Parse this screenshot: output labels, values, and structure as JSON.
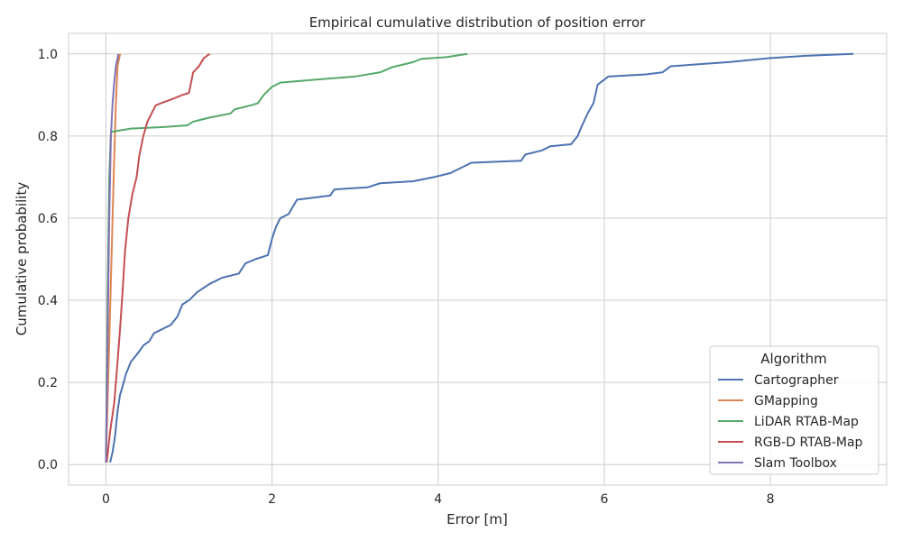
{
  "chart_data": {
    "type": "line",
    "title": "Empirical cumulative distribution of position error",
    "xlabel": "Error [m]",
    "ylabel": "Cumulative probability",
    "xlim": [
      -0.45,
      9.4
    ],
    "ylim": [
      -0.05,
      1.05
    ],
    "xticks": [
      0,
      2,
      4,
      6,
      8
    ],
    "yticks": [
      0.0,
      0.2,
      0.4,
      0.6,
      0.8,
      1.0
    ],
    "xtick_labels": [
      "0",
      "2",
      "4",
      "6",
      "8"
    ],
    "ytick_labels": [
      "0.0",
      "0.2",
      "0.4",
      "0.6",
      "0.8",
      "1.0"
    ],
    "grid": true,
    "legend": {
      "title": "Algorithm",
      "placement": "lower-right"
    },
    "series": [
      {
        "name": "Cartographer",
        "color": "#4c72b0",
        "points": [
          [
            0.05,
            0.005
          ],
          [
            0.08,
            0.03
          ],
          [
            0.11,
            0.07
          ],
          [
            0.14,
            0.13
          ],
          [
            0.17,
            0.17
          ],
          [
            0.2,
            0.19
          ],
          [
            0.24,
            0.22
          ],
          [
            0.3,
            0.25
          ],
          [
            0.38,
            0.27
          ],
          [
            0.45,
            0.29
          ],
          [
            0.52,
            0.3
          ],
          [
            0.58,
            0.32
          ],
          [
            0.68,
            0.33
          ],
          [
            0.78,
            0.34
          ],
          [
            0.86,
            0.36
          ],
          [
            0.92,
            0.39
          ],
          [
            1.0,
            0.4
          ],
          [
            1.1,
            0.42
          ],
          [
            1.25,
            0.44
          ],
          [
            1.4,
            0.455
          ],
          [
            1.6,
            0.465
          ],
          [
            1.68,
            0.49
          ],
          [
            1.8,
            0.5
          ],
          [
            1.95,
            0.51
          ],
          [
            2.0,
            0.55
          ],
          [
            2.05,
            0.58
          ],
          [
            2.1,
            0.6
          ],
          [
            2.2,
            0.61
          ],
          [
            2.3,
            0.645
          ],
          [
            2.7,
            0.655
          ],
          [
            2.75,
            0.67
          ],
          [
            3.15,
            0.675
          ],
          [
            3.3,
            0.685
          ],
          [
            3.7,
            0.69
          ],
          [
            3.95,
            0.7
          ],
          [
            4.15,
            0.71
          ],
          [
            4.4,
            0.735
          ],
          [
            5.0,
            0.74
          ],
          [
            5.05,
            0.755
          ],
          [
            5.25,
            0.765
          ],
          [
            5.35,
            0.775
          ],
          [
            5.6,
            0.78
          ],
          [
            5.68,
            0.8
          ],
          [
            5.72,
            0.82
          ],
          [
            5.8,
            0.855
          ],
          [
            5.87,
            0.88
          ],
          [
            5.92,
            0.925
          ],
          [
            6.05,
            0.945
          ],
          [
            6.5,
            0.95
          ],
          [
            6.7,
            0.955
          ],
          [
            6.8,
            0.97
          ],
          [
            7.5,
            0.98
          ],
          [
            8.0,
            0.99
          ],
          [
            8.4,
            0.995
          ],
          [
            9.0,
            1.0
          ]
        ]
      },
      {
        "name": "GMapping",
        "color": "#dd8452",
        "points": [
          [
            0.0,
            0.005
          ],
          [
            0.02,
            0.15
          ],
          [
            0.04,
            0.3
          ],
          [
            0.06,
            0.45
          ],
          [
            0.08,
            0.6
          ],
          [
            0.1,
            0.75
          ],
          [
            0.12,
            0.88
          ],
          [
            0.14,
            0.97
          ],
          [
            0.17,
            1.0
          ]
        ]
      },
      {
        "name": "LiDAR RTAB-Map",
        "color": "#55a868",
        "points": [
          [
            0.0,
            0.005
          ],
          [
            0.02,
            0.4
          ],
          [
            0.04,
            0.7
          ],
          [
            0.06,
            0.81
          ],
          [
            0.3,
            0.818
          ],
          [
            0.7,
            0.822
          ],
          [
            0.98,
            0.826
          ],
          [
            1.05,
            0.835
          ],
          [
            1.15,
            0.84
          ],
          [
            1.25,
            0.845
          ],
          [
            1.5,
            0.855
          ],
          [
            1.55,
            0.865
          ],
          [
            1.75,
            0.875
          ],
          [
            1.83,
            0.88
          ],
          [
            1.9,
            0.9
          ],
          [
            2.0,
            0.92
          ],
          [
            2.1,
            0.93
          ],
          [
            2.5,
            0.937
          ],
          [
            3.0,
            0.945
          ],
          [
            3.3,
            0.955
          ],
          [
            3.45,
            0.968
          ],
          [
            3.6,
            0.975
          ],
          [
            3.7,
            0.98
          ],
          [
            3.8,
            0.988
          ],
          [
            4.1,
            0.992
          ],
          [
            4.35,
            1.0
          ]
        ]
      },
      {
        "name": "RGB-D RTAB-Map",
        "color": "#c44e52",
        "points": [
          [
            0.01,
            0.005
          ],
          [
            0.05,
            0.08
          ],
          [
            0.1,
            0.15
          ],
          [
            0.14,
            0.25
          ],
          [
            0.17,
            0.33
          ],
          [
            0.2,
            0.42
          ],
          [
            0.23,
            0.52
          ],
          [
            0.27,
            0.6
          ],
          [
            0.32,
            0.66
          ],
          [
            0.37,
            0.7
          ],
          [
            0.4,
            0.75
          ],
          [
            0.45,
            0.8
          ],
          [
            0.5,
            0.835
          ],
          [
            0.6,
            0.875
          ],
          [
            0.8,
            0.89
          ],
          [
            0.92,
            0.9
          ],
          [
            1.0,
            0.905
          ],
          [
            1.05,
            0.955
          ],
          [
            1.12,
            0.97
          ],
          [
            1.18,
            0.99
          ],
          [
            1.25,
            1.0
          ]
        ]
      },
      {
        "name": "Slam Toolbox",
        "color": "#8172b3",
        "points": [
          [
            0.0,
            0.005
          ],
          [
            0.02,
            0.3
          ],
          [
            0.04,
            0.6
          ],
          [
            0.06,
            0.8
          ],
          [
            0.08,
            0.88
          ],
          [
            0.1,
            0.93
          ],
          [
            0.12,
            0.97
          ],
          [
            0.15,
            1.0
          ]
        ]
      }
    ]
  }
}
